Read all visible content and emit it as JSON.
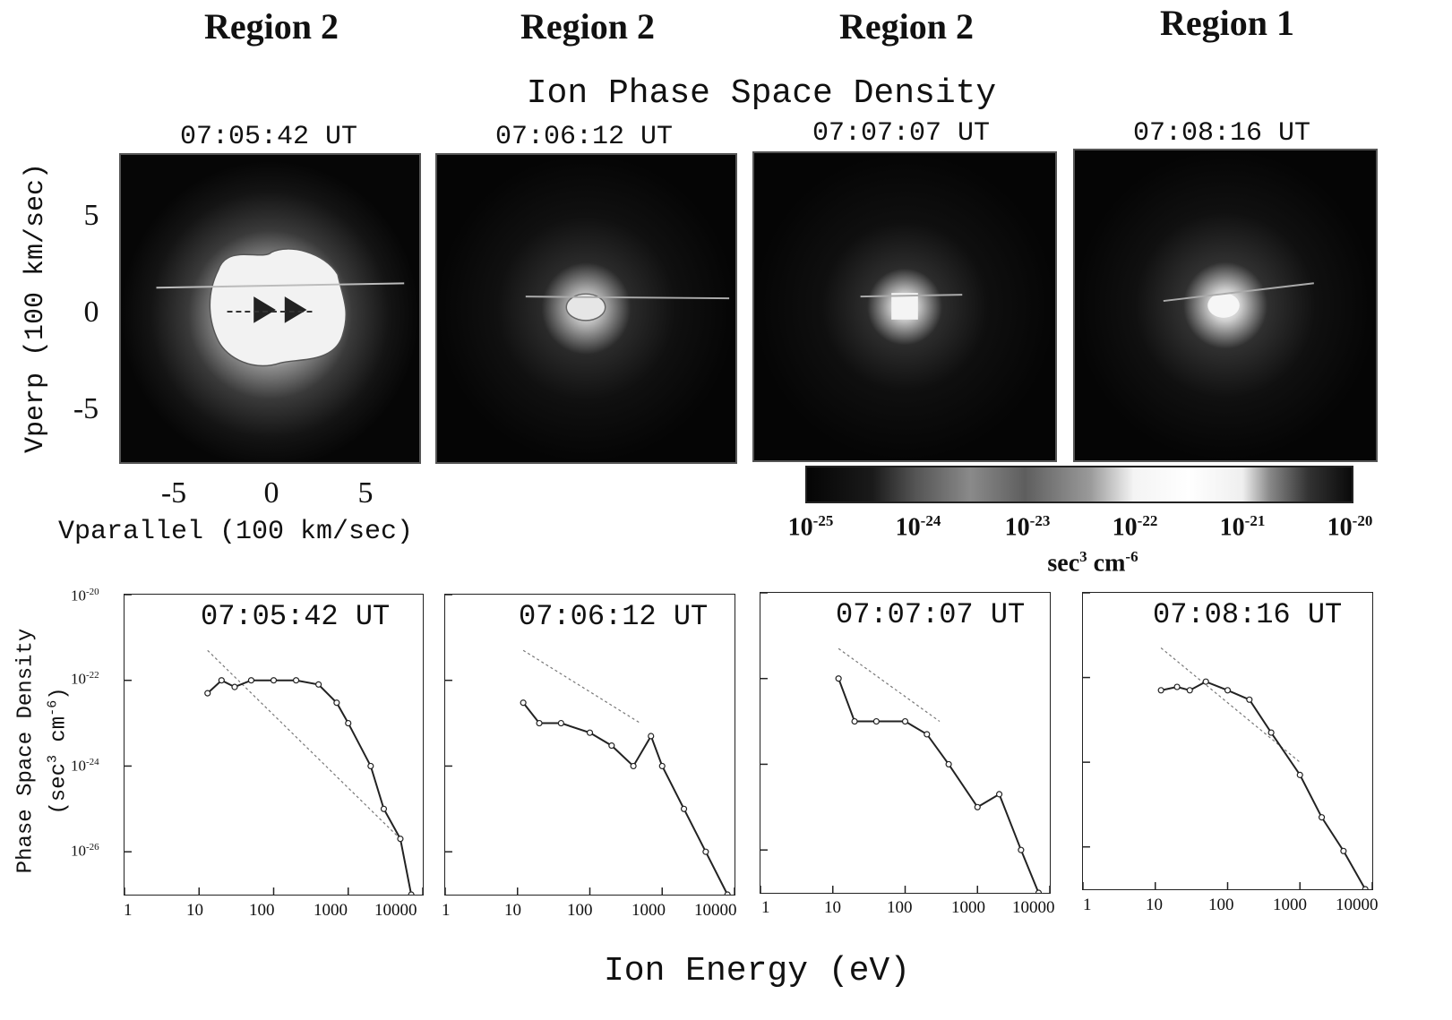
{
  "regions": [
    "Region 2",
    "Region 2",
    "Region 2",
    "Region 1"
  ],
  "top": {
    "title": "Ion Phase Space Density",
    "timestamps": [
      "07:05:42 UT",
      "07:06:12 UT",
      "07:07:07 UT",
      "07:08:16 UT"
    ],
    "ylabel": "Vperp (100 km/sec)",
    "xlabel": "Vparallel (100 km/sec)",
    "yticks": [
      "5",
      "0",
      "-5"
    ],
    "xticks": [
      "-5",
      "0",
      "5"
    ]
  },
  "colorbar": {
    "labels": [
      {
        "base": "10",
        "exp": "-25"
      },
      {
        "base": "10",
        "exp": "-24"
      },
      {
        "base": "10",
        "exp": "-23"
      },
      {
        "base": "10",
        "exp": "-22"
      },
      {
        "base": "10",
        "exp": "-21"
      },
      {
        "base": "10",
        "exp": "-20"
      }
    ],
    "unit_base": "sec",
    "unit_exp1": "3",
    "unit_mid": " cm",
    "unit_exp2": "-6"
  },
  "bottom": {
    "ylabel_line1": "Phase Space Density",
    "ylabel_line2_a": "(sec",
    "ylabel_line2_sup1": "3",
    "ylabel_line2_b": " cm",
    "ylabel_line2_sup2": "-6",
    "ylabel_line2_c": ")",
    "yticks": [
      {
        "base": "10",
        "exp": "-20"
      },
      {
        "base": "10",
        "exp": "-22"
      },
      {
        "base": "10",
        "exp": "-24"
      },
      {
        "base": "10",
        "exp": "-26"
      }
    ],
    "xticks": [
      "1",
      "10",
      "100",
      "1000",
      "10000"
    ],
    "xlabel": "Ion Energy (eV)"
  },
  "chart_data": [
    {
      "type": "line",
      "title": "07:05:42 UT",
      "xlabel": "Ion Energy (eV)",
      "ylabel": "Phase Space Density (sec3 cm-6)",
      "x_scale": "log",
      "y_scale": "log",
      "xlim": [
        1,
        10000
      ],
      "ylim": [
        1e-27,
        1e-20
      ],
      "series": [
        {
          "x": [
            13,
            20,
            30,
            50,
            100,
            200,
            400,
            700,
            1000,
            2000,
            3000,
            5000,
            7000
          ],
          "y": [
            5e-23,
            1e-22,
            7e-23,
            1e-22,
            1e-22,
            1e-22,
            8e-23,
            3e-23,
            1e-23,
            1e-24,
            1e-25,
            2e-26,
            1e-27
          ]
        }
      ],
      "reference_line": {
        "x": [
          13,
          5000
        ],
        "y": [
          5e-22,
          2e-26
        ]
      }
    },
    {
      "type": "line",
      "title": "07:06:12 UT",
      "xlabel": "Ion Energy (eV)",
      "ylabel": "Phase Space Density (sec3 cm-6)",
      "x_scale": "log",
      "y_scale": "log",
      "xlim": [
        1,
        10000
      ],
      "ylim": [
        1e-27,
        1e-20
      ],
      "series": [
        {
          "x": [
            12,
            20,
            40,
            100,
            200,
            400,
            700,
            1000,
            2000,
            4000,
            8000
          ],
          "y": [
            3e-23,
            1e-23,
            1e-23,
            6e-24,
            3e-24,
            1e-24,
            5e-24,
            1e-24,
            1e-25,
            1e-26,
            1e-27
          ]
        }
      ],
      "reference_line": {
        "x": [
          12,
          500
        ],
        "y": [
          5e-22,
          1e-23
        ]
      }
    },
    {
      "type": "line",
      "title": "07:07:07 UT",
      "xlabel": "Ion Energy (eV)",
      "ylabel": "Phase Space Density (sec3 cm-6)",
      "x_scale": "log",
      "y_scale": "log",
      "xlim": [
        1,
        10000
      ],
      "ylim": [
        1e-27,
        1e-20
      ],
      "series": [
        {
          "x": [
            12,
            20,
            40,
            100,
            200,
            400,
            1000,
            2000,
            4000,
            7000
          ],
          "y": [
            1e-22,
            1e-23,
            1e-23,
            1e-23,
            5e-24,
            1e-24,
            1e-25,
            2e-25,
            1e-26,
            1e-27
          ]
        }
      ],
      "reference_line": {
        "x": [
          12,
          300
        ],
        "y": [
          5e-22,
          1e-23
        ]
      }
    },
    {
      "type": "line",
      "title": "07:08:16 UT",
      "xlabel": "Ion Energy (eV)",
      "ylabel": "Phase Space Density (sec3 cm-6)",
      "x_scale": "log",
      "y_scale": "log",
      "xlim": [
        1,
        10000
      ],
      "ylim": [
        1e-27,
        1e-20
      ],
      "series": [
        {
          "x": [
            12,
            20,
            30,
            50,
            100,
            200,
            400,
            1000,
            2000,
            4000,
            8000
          ],
          "y": [
            5e-23,
            6e-23,
            5e-23,
            8e-23,
            5e-23,
            3e-23,
            5e-24,
            5e-25,
            5e-26,
            8e-27,
            1e-27
          ]
        }
      ],
      "reference_line": {
        "x": [
          12,
          1000
        ],
        "y": [
          5e-22,
          1e-24
        ]
      }
    }
  ]
}
